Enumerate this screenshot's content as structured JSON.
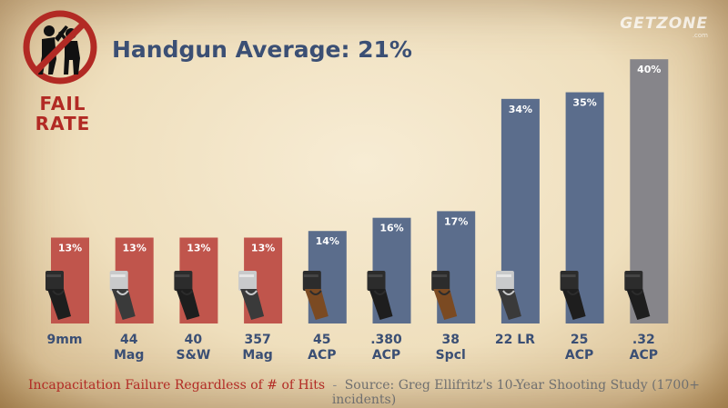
{
  "header": {
    "title": "Handgun Average: 21%",
    "badge_line1": "FAIL",
    "badge_line2": "RATE",
    "brand": "GETZONE",
    "brand_sub": ".com"
  },
  "footer": {
    "left": "Incapacitation Failure Regardless of # of Hits",
    "separator": "-",
    "right": "Source: Greg Ellifritz's 10-Year Shooting Study (1700+ incidents)"
  },
  "colors": {
    "red_bar": "#c0554c",
    "blue_bar": "#5b6d8c",
    "gray_bar": "#86858a",
    "label_blue": "#3b4f74",
    "fail_red": "#b22a24"
  },
  "icons": [
    "fail-rate-badge-icon",
    "handgun-icon"
  ],
  "chart_data": {
    "type": "bar",
    "title": "Handgun Average: 21%",
    "xlabel": "",
    "ylabel": "",
    "ylim": [
      0,
      40
    ],
    "grid": false,
    "categories": [
      "9mm",
      "44 Mag",
      "40 S&W",
      "357 Mag",
      "45 ACP",
      ".380 ACP",
      "38 Spcl",
      "22 LR",
      "25 ACP",
      ".32 ACP"
    ],
    "category_lines": [
      [
        "9mm"
      ],
      [
        "44",
        "Mag"
      ],
      [
        "40",
        "S&W"
      ],
      [
        "357",
        "Mag"
      ],
      [
        "45",
        "ACP"
      ],
      [
        ".380",
        "ACP"
      ],
      [
        "38",
        "Spcl"
      ],
      [
        "22 LR"
      ],
      [
        "25",
        "ACP"
      ],
      [
        ".32",
        "ACP"
      ]
    ],
    "values": [
      13,
      13,
      13,
      13,
      14,
      16,
      17,
      34,
      35,
      40
    ],
    "value_labels": [
      "13%",
      "13%",
      "13%",
      "13%",
      "14%",
      "16%",
      "17%",
      "34%",
      "35%",
      "40%"
    ],
    "bar_colors": [
      "red",
      "red",
      "red",
      "red",
      "blue",
      "blue",
      "blue",
      "blue",
      "blue",
      "gray"
    ]
  }
}
